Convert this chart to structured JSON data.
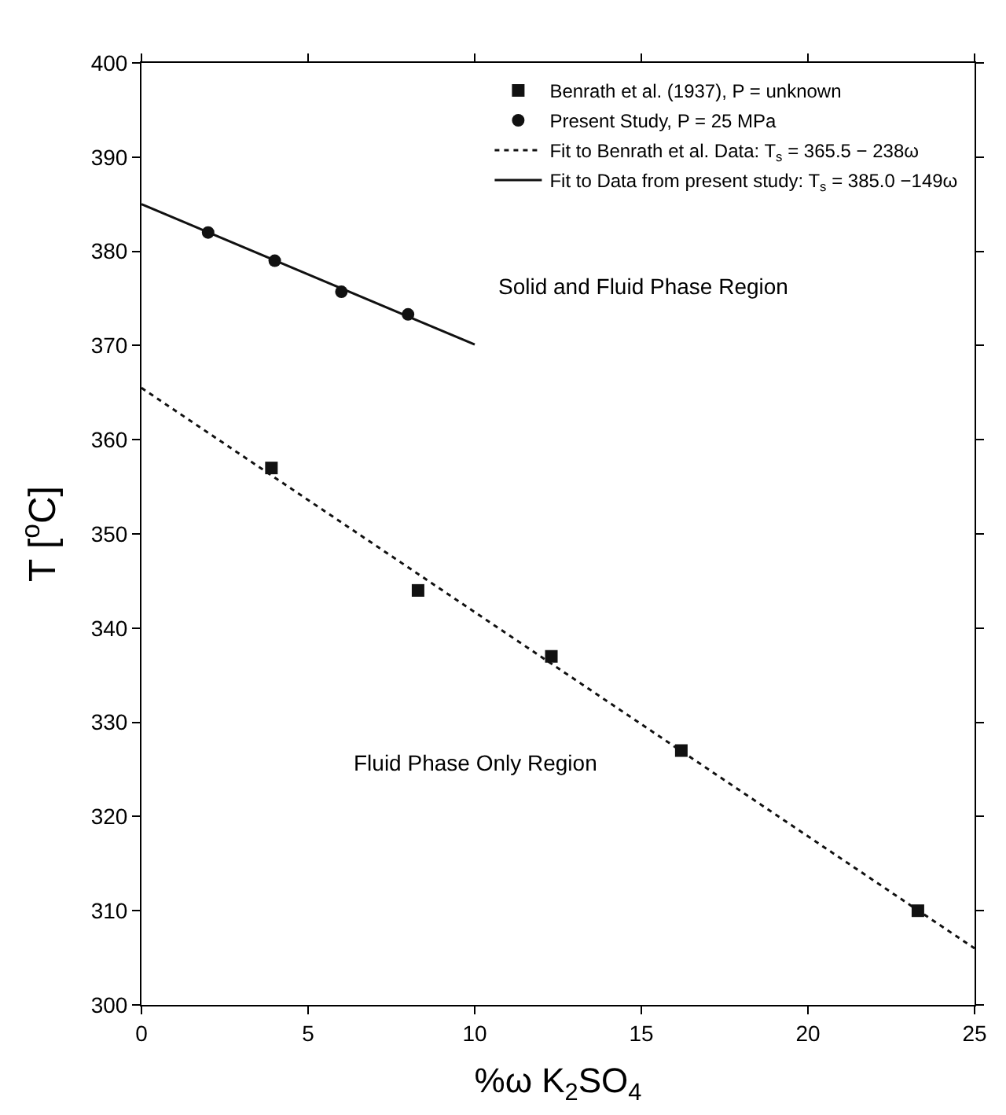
{
  "chart_data": {
    "type": "scatter",
    "xlabel": "%ω K$_{2}$SO$_{4}$",
    "ylabel": "T [$^{o}$C]",
    "xlim": [
      0,
      25
    ],
    "xticks": [
      0,
      5,
      10,
      15,
      20,
      25
    ],
    "ylim": [
      300,
      400
    ],
    "yticks": [
      300,
      310,
      320,
      330,
      340,
      350,
      360,
      370,
      380,
      390,
      400
    ],
    "legend": "top right",
    "annotations": [
      "Solid and Fluid Phase Region",
      "Fluid Phase Only Region"
    ],
    "series": [
      {
        "name": "Benrath et al. (1937), P = unknown",
        "marker": "square",
        "color": "#111111",
        "x": [
          3.9,
          8.3,
          12.3,
          16.2,
          23.3
        ],
        "values": [
          357,
          344,
          337,
          327,
          310
        ]
      },
      {
        "name": "Present Study, P = 25 MPa",
        "marker": "circle",
        "color": "#111111",
        "x": [
          2,
          4,
          6,
          8
        ],
        "values": [
          382,
          379,
          375.7,
          373.3
        ]
      },
      {
        "name": "Fit to Benrath et al. Data: T$_{s}$ = 365.5 − 238ω",
        "type": "line",
        "marker": "none",
        "line_style": "dotted",
        "color": "#111111",
        "x": [
          0,
          25
        ],
        "values": [
          365.5,
          306.0
        ]
      },
      {
        "name": "Fit to Data from present study: T$_{s}$ = 385.0 −149ω",
        "type": "line",
        "marker": "none",
        "line_style": "solid",
        "color": "#111111",
        "x": [
          0,
          10
        ],
        "values": [
          385.0,
          370.1
        ]
      }
    ]
  }
}
